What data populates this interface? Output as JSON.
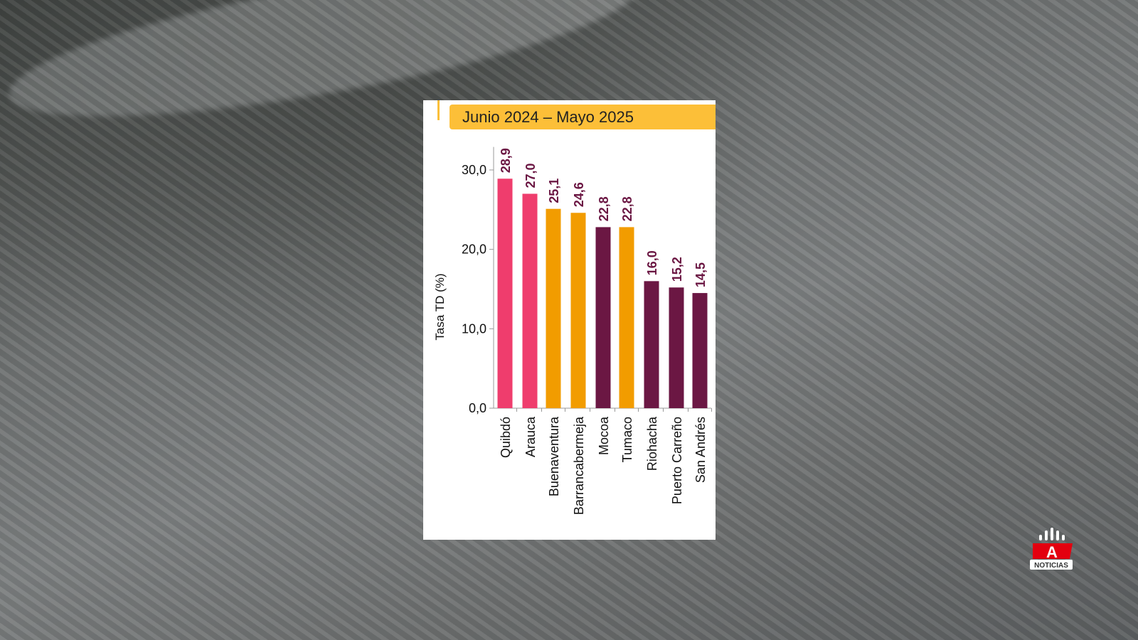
{
  "chart_data": {
    "type": "bar",
    "title": "Junio 2024 – Mayo 2025",
    "ylabel": "Tasa TD (%)",
    "xlabel": "",
    "ylim": [
      0,
      32
    ],
    "yticks": [
      "0,0",
      "10,0",
      "20,0",
      "30,0"
    ],
    "ytick_values": [
      0,
      10,
      20,
      30
    ],
    "categories": [
      "Quibdó",
      "Arauca",
      "Buenaventura",
      "Barrancabermeja",
      "Mocoa",
      "Tumaco",
      "Riohacha",
      "Puerto Carreño",
      "San Andrés"
    ],
    "values": [
      28.9,
      27.0,
      25.1,
      24.6,
      22.8,
      22.8,
      16.0,
      15.2,
      14.5
    ],
    "value_labels": [
      "28,9",
      "27,0",
      "25,1",
      "24,6",
      "22,8",
      "22,8",
      "16,0",
      "15,2",
      "14,5"
    ],
    "bar_colors": [
      "#ef3d6d",
      "#ef3d6d",
      "#f29c00",
      "#f29c00",
      "#6b1743",
      "#f29c00",
      "#6b1743",
      "#6b1743",
      "#6b1743"
    ],
    "label_color": "#6b1743",
    "grid": false
  },
  "logo": {
    "text": "NOTICIAS",
    "letter": "A"
  }
}
